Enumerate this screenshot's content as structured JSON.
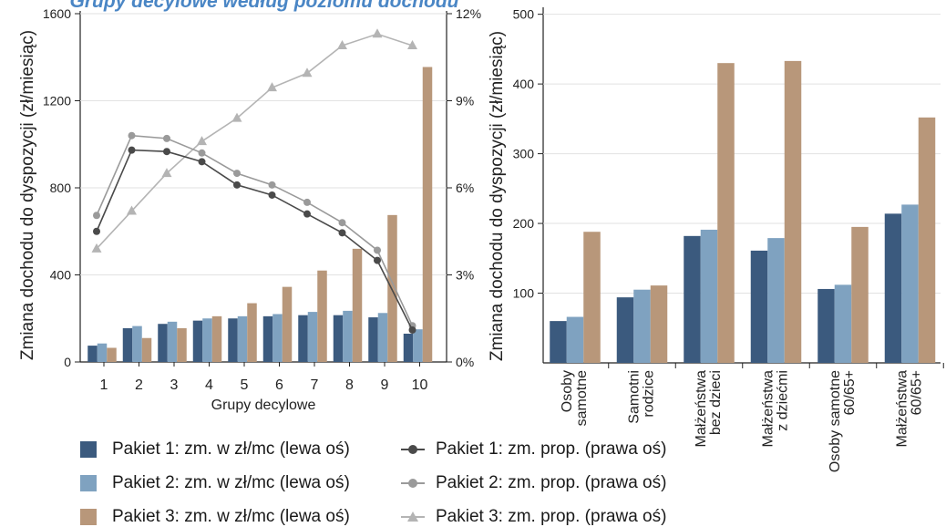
{
  "colors": {
    "pakiet1": "#3b5a7e",
    "pakiet2": "#7fa2c0",
    "pakiet3": "#b8977a",
    "line1": "#4a4a4a",
    "line2": "#9a9a9a",
    "line3": "#b4b4b4"
  },
  "title_fragment": "Grupy decylowe według poziomu dochodu",
  "chart_data": [
    {
      "type": "bar+line",
      "xlabel": "Grupy decylowe",
      "ylabel_left": "Zmiana dochodu do dyspozycji (zł/miesiąc)",
      "ylim_left": [
        0,
        1600
      ],
      "yticks_left": [
        0,
        400,
        800,
        1200,
        1600
      ],
      "ylim_right": [
        0,
        12
      ],
      "yticks_right": [
        "0%",
        "3%",
        "6%",
        "9%",
        "12%"
      ],
      "categories": [
        "1",
        "2",
        "3",
        "4",
        "5",
        "6",
        "7",
        "8",
        "9",
        "10"
      ],
      "bar_series": [
        {
          "name": "Pakiet 1: zm. w zł/mc (lewa oś)",
          "values": [
            75,
            155,
            175,
            190,
            200,
            210,
            215,
            215,
            205,
            130
          ]
        },
        {
          "name": "Pakiet 2: zm. w zł/mc (lewa oś)",
          "values": [
            85,
            165,
            185,
            200,
            210,
            220,
            230,
            235,
            225,
            150
          ]
        },
        {
          "name": "Pakiet 3: zm. w zł/mc (lewa oś)",
          "values": [
            65,
            110,
            155,
            210,
            270,
            345,
            420,
            520,
            675,
            1355
          ]
        }
      ],
      "line_series": [
        {
          "name": "Pakiet 1: zm. prop. (prawa oś)",
          "marker": "circle",
          "values": [
            4.5,
            7.3,
            7.25,
            6.9,
            6.1,
            5.75,
            5.1,
            4.45,
            3.5,
            1.1
          ]
        },
        {
          "name": "Pakiet 2: zm. prop. (prawa oś)",
          "marker": "circle",
          "values": [
            5.05,
            7.8,
            7.7,
            7.2,
            6.5,
            6.1,
            5.5,
            4.8,
            3.85,
            1.25
          ]
        },
        {
          "name": "Pakiet 3: zm. prop. (prawa oś)",
          "marker": "triangle",
          "values": [
            3.9,
            5.2,
            6.5,
            7.6,
            8.4,
            9.45,
            9.95,
            10.9,
            11.3,
            10.9
          ]
        }
      ]
    },
    {
      "type": "bar",
      "ylabel": "Zmiana dochodu do dyspozycji (zł/miesiąc)",
      "ylim": [
        0,
        510
      ],
      "yticks": [
        100,
        200,
        300,
        400,
        500
      ],
      "categories": [
        [
          "Osoby",
          "samotne"
        ],
        [
          "Samotni",
          "rodzice"
        ],
        [
          "Małżeństwa",
          "bez dzieci"
        ],
        [
          "Małżeństwa",
          "z dziećmi"
        ],
        [
          "Osoby samotne",
          "60/65+"
        ],
        [
          "Małżeństwa",
          "60/65+"
        ]
      ],
      "series": [
        {
          "name": "Pakiet 1: zm. w zł/mc (lewa oś)",
          "values": [
            60,
            94,
            182,
            161,
            106,
            214
          ]
        },
        {
          "name": "Pakiet 2: zm. w zł/mc (lewa oś)",
          "values": [
            66,
            105,
            191,
            179,
            112,
            227
          ]
        },
        {
          "name": "Pakiet 3: zm. w zł/mc (lewa oś)",
          "values": [
            188,
            111,
            430,
            433,
            195,
            352
          ]
        }
      ]
    }
  ],
  "legend": {
    "items": [
      "Pakiet 1: zm. w zł/mc (lewa oś)",
      "Pakiet 2: zm. w zł/mc (lewa oś)",
      "Pakiet 3: zm. w zł/mc (lewa oś)",
      "Pakiet 1: zm. prop. (prawa oś)",
      "Pakiet 2: zm. prop. (prawa oś)",
      "Pakiet 3: zm. prop. (prawa oś)"
    ]
  }
}
